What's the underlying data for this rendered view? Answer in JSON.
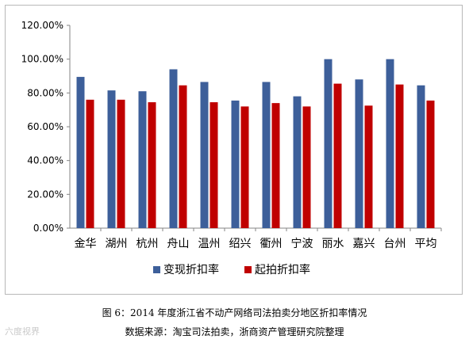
{
  "chart_data": {
    "type": "bar",
    "categories": [
      "金华",
      "湖州",
      "杭州",
      "舟山",
      "温州",
      "绍兴",
      "衢州",
      "宁波",
      "丽水",
      "嘉兴",
      "台州",
      "平均"
    ],
    "series": [
      {
        "name": "变现折扣率",
        "color": "#3d5f9a",
        "values": [
          89.5,
          81.5,
          81.0,
          94.0,
          86.5,
          75.5,
          86.5,
          78.0,
          100.0,
          88.0,
          100.0,
          84.5
        ]
      },
      {
        "name": "起拍折扣率",
        "color": "#c00000",
        "values": [
          76.0,
          76.0,
          74.5,
          84.5,
          74.5,
          72.0,
          74.0,
          72.0,
          85.5,
          72.5,
          85.0,
          75.5
        ]
      }
    ],
    "yticks": [
      "0.00%",
      "20.00%",
      "40.00%",
      "60.00%",
      "80.00%",
      "100.00%",
      "120.00%"
    ],
    "ylim": [
      0,
      120
    ],
    "legend_position": "bottom"
  },
  "caption": {
    "line1": "图 6：2014 年度浙江省不动产网络司法拍卖分地区折扣率情况",
    "line2": "数据来源：淘宝司法拍卖，浙商资产管理研究院整理"
  },
  "watermark": "六度视界"
}
